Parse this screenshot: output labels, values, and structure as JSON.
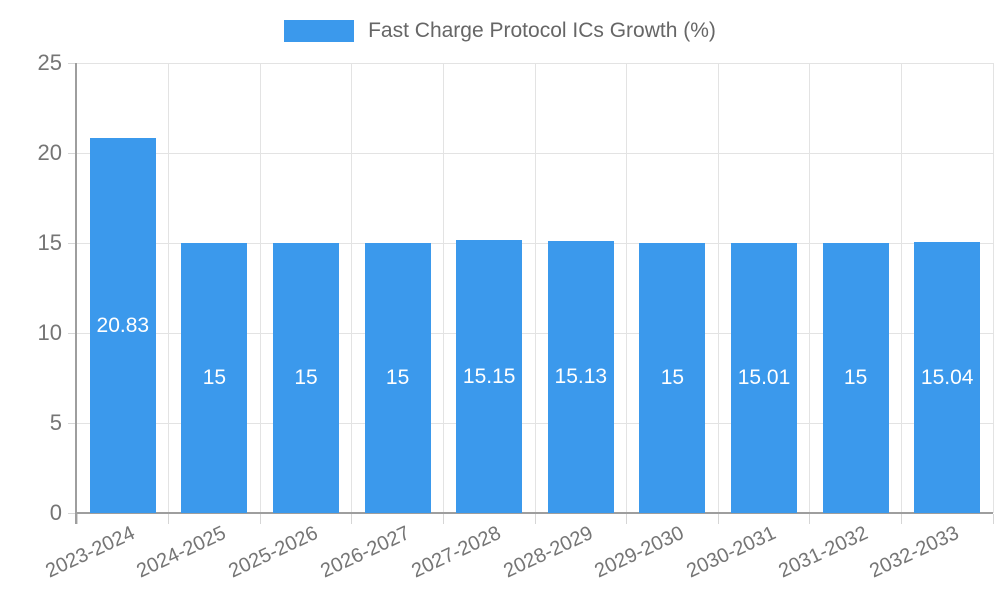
{
  "legend": {
    "label": "Fast Charge Protocol ICs Growth (%)"
  },
  "chart_data": {
    "type": "bar",
    "title": "Fast Charge Protocol ICs Growth (%)",
    "categories": [
      "2023-2024",
      "2024-2025",
      "2025-2026",
      "2026-2027",
      "2027-2028",
      "2028-2029",
      "2029-2030",
      "2030-2031",
      "2031-2032",
      "2032-2033"
    ],
    "values": [
      20.83,
      15,
      15,
      15,
      15.15,
      15.13,
      15,
      15.01,
      15,
      15.04
    ],
    "xlabel": "",
    "ylabel": "",
    "ylim": [
      0,
      25
    ],
    "yticks": [
      0,
      5,
      10,
      15,
      20,
      25
    ],
    "grid": true,
    "legend_position": "top",
    "colors": {
      "bar": "#3b99ec",
      "bar_label": "#ffffff",
      "axis_text": "#757575",
      "legend_text": "#666666",
      "gridline": "#e3e3e3",
      "axis_line": "#9e9e9e",
      "tick": "#d6d6d6"
    }
  }
}
